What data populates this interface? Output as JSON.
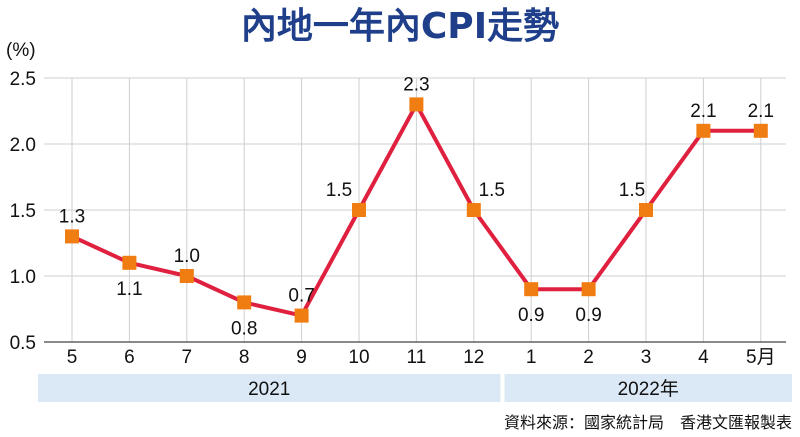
{
  "chart_data": {
    "type": "line",
    "title": "內地一年內CPI走勢",
    "ylabel": "(%)",
    "categories": [
      "5",
      "6",
      "7",
      "8",
      "9",
      "10",
      "11",
      "12",
      "1",
      "2",
      "3",
      "4",
      "5月"
    ],
    "year_groups": [
      {
        "label": "2021",
        "categories": [
          "5",
          "6",
          "7",
          "8",
          "9",
          "10",
          "11",
          "12"
        ]
      },
      {
        "label": "2022年",
        "categories": [
          "1",
          "2",
          "3",
          "4",
          "5月"
        ]
      }
    ],
    "values": [
      1.3,
      1.1,
      1.0,
      0.8,
      0.7,
      1.5,
      2.3,
      1.5,
      0.9,
      0.9,
      1.5,
      2.1,
      2.1
    ],
    "data_labels": [
      "1.3",
      "1.1",
      "1.0",
      "0.8",
      "0.7",
      "1.5",
      "2.3",
      "1.5",
      "0.9",
      "0.9",
      "1.5",
      "2.1",
      "2.1"
    ],
    "ylim": [
      0.5,
      2.5
    ],
    "yticks": [
      "0.5",
      "1.0",
      "1.5",
      "2.0",
      "2.5"
    ],
    "grid": true,
    "line_color": "#e0203f",
    "marker_color": "#f07d12",
    "source": "資料來源：國家統計局　香港文匯報製表"
  }
}
